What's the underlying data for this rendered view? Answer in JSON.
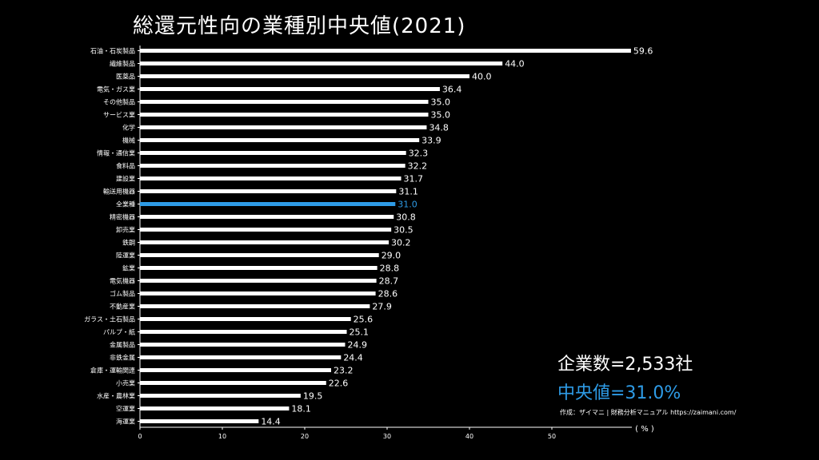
{
  "title": "総還元性向の業種別中央値(2021)",
  "summary": {
    "count_text": "企業数=2,533社",
    "median_text": "中央値=31.0%"
  },
  "credit": "作成：ザイマニ | 財務分析マニュアル https://zaimani.com/",
  "colors": {
    "bar": "#ffffff",
    "highlight": "#2e9be6",
    "background": "#000000"
  },
  "chart_data": {
    "type": "bar",
    "orientation": "horizontal",
    "unit_label": "( % )",
    "xlim": [
      0,
      60
    ],
    "xticks": [
      0,
      10,
      20,
      30,
      40,
      50
    ],
    "highlight_category": "全業種",
    "categories": [
      "石油・石炭製品",
      "繊維製品",
      "医薬品",
      "電気・ガス業",
      "その他製品",
      "サービス業",
      "化学",
      "機械",
      "情報・通信業",
      "食料品",
      "建設業",
      "輸送用機器",
      "全業種",
      "精密機器",
      "卸売業",
      "鉄鋼",
      "陸運業",
      "鉱業",
      "電気機器",
      "ゴム製品",
      "不動産業",
      "ガラス・土石製品",
      "パルプ・紙",
      "金属製品",
      "非鉄金属",
      "倉庫・運輸関連",
      "小売業",
      "水産・農林業",
      "空運業",
      "海運業"
    ],
    "values": [
      59.6,
      44.0,
      40.0,
      36.4,
      35.0,
      35.0,
      34.8,
      33.9,
      32.3,
      32.2,
      31.7,
      31.1,
      31.0,
      30.8,
      30.5,
      30.2,
      29.0,
      28.8,
      28.7,
      28.6,
      27.9,
      25.6,
      25.1,
      24.9,
      24.4,
      23.2,
      22.6,
      19.5,
      18.1,
      14.4
    ],
    "value_labels": [
      "59.6",
      "44.0",
      "40.0",
      "36.4",
      "35.0",
      "35.0",
      "34.8",
      "33.9",
      "32.3",
      "32.2",
      "31.7",
      "31.1",
      "31.0",
      "30.8",
      "30.5",
      "30.2",
      "29.0",
      "28.8",
      "28.7",
      "28.6",
      "27.9",
      "25.6",
      "25.1",
      "24.9",
      "24.4",
      "23.2",
      "22.6",
      "19.5",
      "18.1",
      "14.4"
    ]
  }
}
